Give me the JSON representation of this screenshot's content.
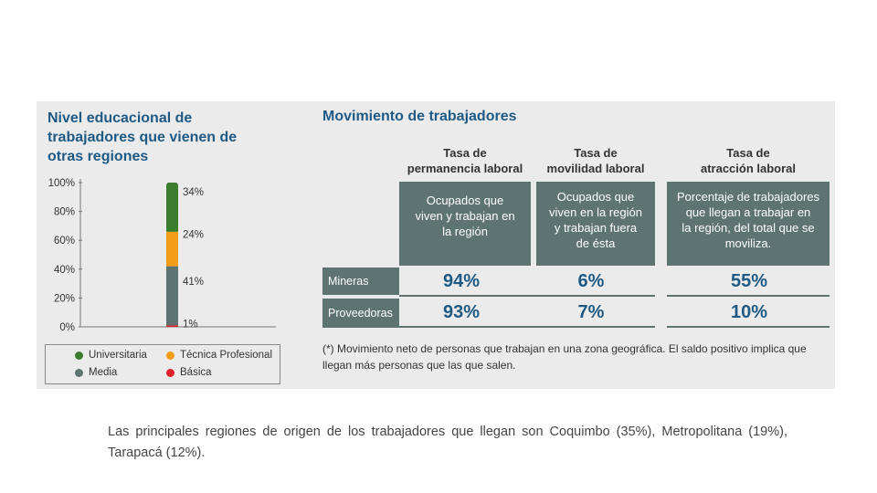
{
  "left": {
    "title_lines": [
      "Nivel educacional de",
      "trabajadores que vienen de",
      "otras regiones"
    ]
  },
  "chart_data": {
    "type": "bar",
    "stacked": true,
    "categories": [
      ""
    ],
    "series": [
      {
        "name": "Básica",
        "values": [
          1
        ],
        "color": "#e0202a",
        "label": "1%"
      },
      {
        "name": "Media",
        "values": [
          41
        ],
        "color": "#5e7470",
        "label": "41%"
      },
      {
        "name": "Técnica Profesional",
        "values": [
          24
        ],
        "color": "#f59c1a",
        "label": "24%"
      },
      {
        "name": "Universitaria",
        "values": [
          34
        ],
        "color": "#3a7d2c",
        "label": "34%"
      }
    ],
    "ylim": [
      0,
      100
    ],
    "yticks": [
      "0%",
      "20%",
      "40%",
      "60%",
      "80%",
      "100%"
    ],
    "legend_position": "bottom",
    "legend_order": [
      "Universitaria",
      "Técnica Profesional",
      "Media",
      "Básica"
    ]
  },
  "right": {
    "title": "Movimiento de trabajadores",
    "columns": [
      {
        "head": [
          "Tasa de",
          "permanencia laboral"
        ],
        "desc": [
          "Ocupados que",
          "viven y trabajan en",
          "la región"
        ]
      },
      {
        "head": [
          "Tasa de",
          "movilidad laboral"
        ],
        "desc": [
          "Ocupados que",
          "viven en la región",
          "y trabajan fuera",
          "de ésta"
        ]
      },
      {
        "head": [
          "Tasa de",
          "atracción laboral"
        ],
        "desc": [
          "Porcentaje de trabajadores",
          "que llegan a trabajar en",
          "la región, del total que se",
          "moviliza."
        ]
      }
    ],
    "rows": [
      {
        "label": "Mineras",
        "values": [
          "94%",
          "6%",
          "55%"
        ]
      },
      {
        "label": "Proveedoras",
        "values": [
          "93%",
          "7%",
          "10%"
        ]
      }
    ],
    "note": "(*) Movimiento neto de personas que trabajan en una zona geográfica. El saldo positivo implica que llegan más personas que las que salen."
  },
  "caption": "Las principales regiones de origen de los trabajadores que llegan son Coquimbo (35%), Metropolitana (19%), Tarapacá (12%)."
}
